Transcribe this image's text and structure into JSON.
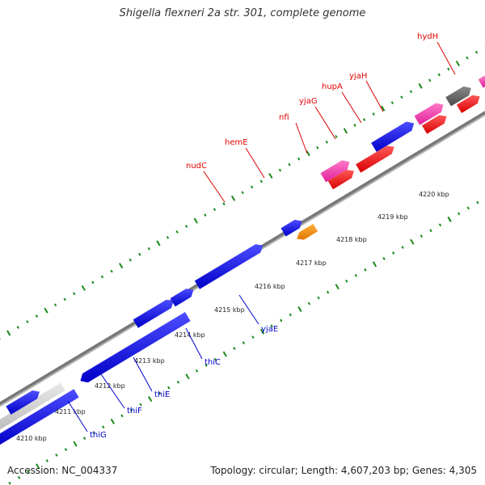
{
  "title": "Shigella flexneri 2a str. 301, complete genome",
  "footer": {
    "accession": "Accession: NC_004337",
    "summary": "Topology: circular; Length: 4,607,203 bp; Genes: 4,305"
  },
  "colors": {
    "top_strand_label": "#e00000",
    "bottom_strand_label": "#0000cc",
    "backbone": "#888888",
    "ticks": "#1a8a1a"
  },
  "kbp_labels": [
    "4210 kbp",
    "4211 kbp",
    "4212 kbp",
    "4213 kbp",
    "4214 kbp",
    "4215 kbp",
    "4216 kbp",
    "4217 kbp",
    "4218 kbp",
    "4219 kbp",
    "4220 kbp"
  ],
  "gene_labels_top": [
    "nudC",
    "hemE",
    "nfi",
    "yjaG",
    "hupA",
    "yjaH",
    "hydH"
  ],
  "gene_labels_bottom": [
    "thiG",
    "thiF",
    "thiE",
    "thiC",
    "yjaE"
  ]
}
